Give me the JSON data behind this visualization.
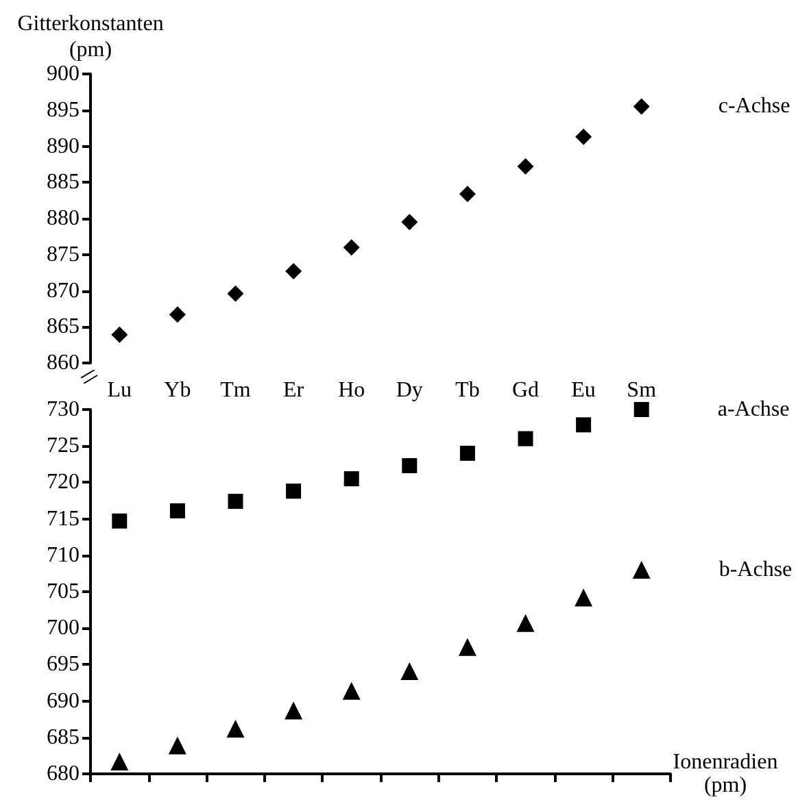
{
  "chart_data": [
    {
      "type": "scatter",
      "ylabel": "Gitterkonstanten (pm)",
      "categories": [
        "Lu",
        "Yb",
        "Tm",
        "Er",
        "Ho",
        "Dy",
        "Tb",
        "Gd",
        "Eu",
        "Sm"
      ],
      "series": [
        {
          "name": "c-Achse",
          "color": "#000000",
          "marker": "diamond",
          "values": [
            863.9,
            866.7,
            869.6,
            872.7,
            876.0,
            879.5,
            883.4,
            887.2,
            891.3,
            895.5
          ]
        }
      ],
      "ylim": [
        860,
        900
      ],
      "yticks": [
        860,
        865,
        870,
        875,
        880,
        885,
        890,
        895,
        900
      ],
      "grid": false,
      "legend": false
    },
    {
      "type": "scatter",
      "xlabel": "Ionenradien (pm)",
      "categories": [
        null,
        null,
        null,
        null,
        null,
        null,
        null,
        null,
        null,
        null
      ],
      "tick_labels": "y",
      "series": [
        {
          "name": "a-Achse",
          "color": "#000000",
          "marker": "square",
          "values": [
            714.7,
            716.1,
            717.4,
            718.8,
            720.5,
            722.3,
            724.0,
            726.0,
            727.9,
            730.0
          ]
        },
        {
          "name": "b-Achse",
          "color": "#000000",
          "marker": "triangle",
          "values": [
            681.7,
            683.9,
            686.2,
            688.7,
            691.4,
            694.1,
            697.4,
            700.7,
            704.2,
            708.0
          ]
        }
      ],
      "ylim": [
        680,
        730
      ],
      "yticks": [
        680,
        685,
        690,
        695,
        700,
        705,
        710,
        715,
        720,
        725,
        730
      ],
      "grid": false,
      "legend": false
    }
  ]
}
